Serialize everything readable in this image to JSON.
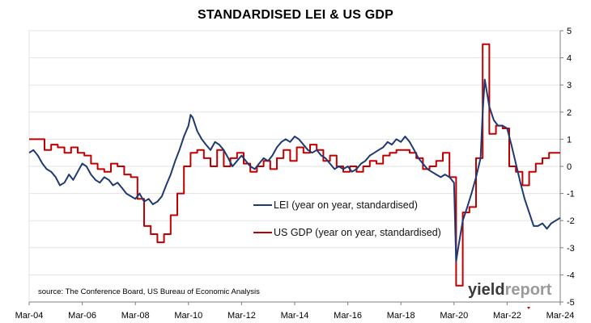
{
  "title": "STANDARDISED LEI & US GDP",
  "source_note": "source: The Conference Board, US Bureau of Economic Analysis",
  "brand": {
    "part1": "yield",
    "part2": "report"
  },
  "colors": {
    "lei": "#1f3a72",
    "gdp": "#c00000",
    "grid": "#e3e3e3",
    "axis": "#7f7f7f"
  },
  "chart_data": {
    "type": "line",
    "title": "STANDARDISED LEI & US GDP",
    "xlabel": "",
    "ylabel": "",
    "x_ticks": [
      "Mar-04",
      "Mar-06",
      "Mar-08",
      "Mar-10",
      "Mar-12",
      "Mar-14",
      "Mar-16",
      "Mar-18",
      "Mar-20",
      "Mar-22",
      "Mar-24"
    ],
    "xlim": [
      2004.17,
      2024.17
    ],
    "ylim": [
      -5,
      5
    ],
    "y_ticks": [
      -5,
      -4,
      -3,
      -2,
      -1,
      0,
      1,
      2,
      3,
      4,
      5
    ],
    "y_axis_side": "right",
    "grid": true,
    "legend_position": "center-right",
    "series": [
      {
        "name": "LEI (year on year, standardised)",
        "color": "#1f3a72",
        "points": [
          [
            2004.17,
            0.5
          ],
          [
            2004.33,
            0.6
          ],
          [
            2004.5,
            0.4
          ],
          [
            2004.67,
            0.1
          ],
          [
            2004.83,
            -0.1
          ],
          [
            2005.0,
            -0.2
          ],
          [
            2005.17,
            -0.4
          ],
          [
            2005.33,
            -0.7
          ],
          [
            2005.5,
            -0.6
          ],
          [
            2005.67,
            -0.3
          ],
          [
            2005.83,
            -0.5
          ],
          [
            2006.0,
            -0.2
          ],
          [
            2006.17,
            0.1
          ],
          [
            2006.33,
            0.0
          ],
          [
            2006.5,
            -0.3
          ],
          [
            2006.67,
            -0.5
          ],
          [
            2006.83,
            -0.6
          ],
          [
            2007.0,
            -0.4
          ],
          [
            2007.17,
            -0.5
          ],
          [
            2007.33,
            -0.7
          ],
          [
            2007.5,
            -0.6
          ],
          [
            2007.67,
            -0.8
          ],
          [
            2007.83,
            -1.0
          ],
          [
            2008.0,
            -1.1
          ],
          [
            2008.17,
            -1.2
          ],
          [
            2008.33,
            -1.0
          ],
          [
            2008.5,
            -1.3
          ],
          [
            2008.67,
            -1.2
          ],
          [
            2008.83,
            -1.4
          ],
          [
            2009.0,
            -1.3
          ],
          [
            2009.17,
            -1.1
          ],
          [
            2009.33,
            -0.7
          ],
          [
            2009.5,
            -0.3
          ],
          [
            2009.67,
            0.2
          ],
          [
            2009.83,
            0.6
          ],
          [
            2010.0,
            1.1
          ],
          [
            2010.17,
            1.5
          ],
          [
            2010.25,
            1.9
          ],
          [
            2010.33,
            1.8
          ],
          [
            2010.5,
            1.3
          ],
          [
            2010.67,
            1.0
          ],
          [
            2010.83,
            0.8
          ],
          [
            2011.0,
            0.6
          ],
          [
            2011.17,
            0.9
          ],
          [
            2011.33,
            0.8
          ],
          [
            2011.5,
            0.6
          ],
          [
            2011.67,
            0.3
          ],
          [
            2011.83,
            0.0
          ],
          [
            2012.0,
            0.2
          ],
          [
            2012.17,
            0.4
          ],
          [
            2012.33,
            0.2
          ],
          [
            2012.5,
            0.0
          ],
          [
            2012.67,
            -0.1
          ],
          [
            2012.83,
            0.1
          ],
          [
            2013.0,
            0.3
          ],
          [
            2013.17,
            0.2
          ],
          [
            2013.33,
            0.4
          ],
          [
            2013.5,
            0.7
          ],
          [
            2013.67,
            0.9
          ],
          [
            2013.83,
            1.0
          ],
          [
            2014.0,
            0.9
          ],
          [
            2014.17,
            1.1
          ],
          [
            2014.33,
            1.0
          ],
          [
            2014.5,
            0.8
          ],
          [
            2014.67,
            0.6
          ],
          [
            2014.83,
            0.5
          ],
          [
            2015.0,
            0.6
          ],
          [
            2015.17,
            0.4
          ],
          [
            2015.33,
            0.3
          ],
          [
            2015.5,
            0.1
          ],
          [
            2015.67,
            -0.1
          ],
          [
            2015.83,
            0.0
          ],
          [
            2016.0,
            -0.1
          ],
          [
            2016.17,
            0.0
          ],
          [
            2016.33,
            -0.2
          ],
          [
            2016.5,
            -0.1
          ],
          [
            2016.67,
            0.1
          ],
          [
            2016.83,
            0.2
          ],
          [
            2017.0,
            0.4
          ],
          [
            2017.17,
            0.5
          ],
          [
            2017.33,
            0.6
          ],
          [
            2017.5,
            0.7
          ],
          [
            2017.67,
            0.9
          ],
          [
            2017.83,
            0.8
          ],
          [
            2018.0,
            1.0
          ],
          [
            2018.17,
            0.9
          ],
          [
            2018.33,
            1.1
          ],
          [
            2018.5,
            0.9
          ],
          [
            2018.67,
            0.6
          ],
          [
            2018.83,
            0.3
          ],
          [
            2019.0,
            0.1
          ],
          [
            2019.17,
            -0.1
          ],
          [
            2019.33,
            -0.2
          ],
          [
            2019.5,
            -0.3
          ],
          [
            2019.67,
            -0.4
          ],
          [
            2019.83,
            -0.3
          ],
          [
            2020.0,
            -0.4
          ],
          [
            2020.17,
            -0.6
          ],
          [
            2020.25,
            -3.5
          ],
          [
            2020.33,
            -3.0
          ],
          [
            2020.5,
            -2.0
          ],
          [
            2020.67,
            -1.5
          ],
          [
            2020.83,
            -1.0
          ],
          [
            2021.0,
            -0.4
          ],
          [
            2021.17,
            0.3
          ],
          [
            2021.25,
            2.0
          ],
          [
            2021.33,
            3.2
          ],
          [
            2021.5,
            2.2
          ],
          [
            2021.67,
            1.7
          ],
          [
            2021.83,
            1.5
          ],
          [
            2022.0,
            1.5
          ],
          [
            2022.17,
            1.4
          ],
          [
            2022.33,
            0.8
          ],
          [
            2022.5,
            0.1
          ],
          [
            2022.67,
            -0.6
          ],
          [
            2022.83,
            -1.2
          ],
          [
            2023.0,
            -1.7
          ],
          [
            2023.17,
            -2.2
          ],
          [
            2023.33,
            -2.2
          ],
          [
            2023.5,
            -2.1
          ],
          [
            2023.67,
            -2.3
          ],
          [
            2023.83,
            -2.1
          ],
          [
            2024.0,
            -2.0
          ],
          [
            2024.17,
            -1.9
          ]
        ]
      },
      {
        "name": "US GDP (year on year, standardised)",
        "color": "#c00000",
        "points": [
          [
            2004.17,
            1.0
          ],
          [
            2004.75,
            1.0
          ],
          [
            2004.75,
            0.6
          ],
          [
            2005.0,
            0.6
          ],
          [
            2005.0,
            0.8
          ],
          [
            2005.25,
            0.8
          ],
          [
            2005.25,
            0.7
          ],
          [
            2005.5,
            0.7
          ],
          [
            2005.5,
            0.5
          ],
          [
            2005.75,
            0.5
          ],
          [
            2005.75,
            0.7
          ],
          [
            2006.0,
            0.7
          ],
          [
            2006.0,
            0.5
          ],
          [
            2006.25,
            0.5
          ],
          [
            2006.25,
            0.4
          ],
          [
            2006.5,
            0.4
          ],
          [
            2006.5,
            0.1
          ],
          [
            2006.75,
            0.1
          ],
          [
            2006.75,
            -0.1
          ],
          [
            2007.0,
            -0.1
          ],
          [
            2007.0,
            -0.2
          ],
          [
            2007.25,
            -0.2
          ],
          [
            2007.25,
            0.1
          ],
          [
            2007.5,
            0.1
          ],
          [
            2007.5,
            0.0
          ],
          [
            2007.75,
            0.0
          ],
          [
            2007.75,
            -0.3
          ],
          [
            2008.0,
            -0.3
          ],
          [
            2008.0,
            -0.4
          ],
          [
            2008.25,
            -0.4
          ],
          [
            2008.25,
            -1.2
          ],
          [
            2008.5,
            -1.2
          ],
          [
            2008.5,
            -2.2
          ],
          [
            2008.75,
            -2.2
          ],
          [
            2008.75,
            -2.5
          ],
          [
            2009.0,
            -2.5
          ],
          [
            2009.0,
            -2.8
          ],
          [
            2009.25,
            -2.8
          ],
          [
            2009.25,
            -2.5
          ],
          [
            2009.5,
            -2.5
          ],
          [
            2009.5,
            -1.8
          ],
          [
            2009.75,
            -1.8
          ],
          [
            2009.75,
            -1.0
          ],
          [
            2010.0,
            -1.0
          ],
          [
            2010.0,
            0.0
          ],
          [
            2010.25,
            0.0
          ],
          [
            2010.25,
            0.5
          ],
          [
            2010.5,
            0.5
          ],
          [
            2010.5,
            0.6
          ],
          [
            2010.75,
            0.6
          ],
          [
            2010.75,
            0.3
          ],
          [
            2011.0,
            0.3
          ],
          [
            2011.0,
            0.0
          ],
          [
            2011.25,
            0.0
          ],
          [
            2011.25,
            0.6
          ],
          [
            2011.5,
            0.6
          ],
          [
            2011.5,
            0.0
          ],
          [
            2011.75,
            0.0
          ],
          [
            2011.75,
            0.3
          ],
          [
            2012.0,
            0.3
          ],
          [
            2012.0,
            0.5
          ],
          [
            2012.25,
            0.5
          ],
          [
            2012.25,
            0.1
          ],
          [
            2012.5,
            0.1
          ],
          [
            2012.5,
            -0.2
          ],
          [
            2012.75,
            -0.2
          ],
          [
            2012.75,
            0.0
          ],
          [
            2013.0,
            0.0
          ],
          [
            2013.0,
            0.2
          ],
          [
            2013.25,
            0.2
          ],
          [
            2013.25,
            -0.1
          ],
          [
            2013.5,
            -0.1
          ],
          [
            2013.5,
            0.3
          ],
          [
            2013.75,
            0.3
          ],
          [
            2013.75,
            0.6
          ],
          [
            2014.0,
            0.6
          ],
          [
            2014.0,
            0.2
          ],
          [
            2014.25,
            0.2
          ],
          [
            2014.25,
            0.7
          ],
          [
            2014.5,
            0.7
          ],
          [
            2014.5,
            0.5
          ],
          [
            2014.75,
            0.5
          ],
          [
            2014.75,
            0.8
          ],
          [
            2015.0,
            0.8
          ],
          [
            2015.0,
            0.6
          ],
          [
            2015.25,
            0.6
          ],
          [
            2015.25,
            0.2
          ],
          [
            2015.5,
            0.2
          ],
          [
            2015.5,
            0.4
          ],
          [
            2015.75,
            0.4
          ],
          [
            2015.75,
            0.0
          ],
          [
            2016.0,
            0.0
          ],
          [
            2016.0,
            -0.2
          ],
          [
            2016.25,
            -0.2
          ],
          [
            2016.25,
            0.0
          ],
          [
            2016.5,
            0.0
          ],
          [
            2016.5,
            -0.2
          ],
          [
            2016.75,
            -0.2
          ],
          [
            2016.75,
            0.0
          ],
          [
            2017.0,
            0.0
          ],
          [
            2017.0,
            0.2
          ],
          [
            2017.25,
            0.2
          ],
          [
            2017.25,
            0.1
          ],
          [
            2017.5,
            0.1
          ],
          [
            2017.5,
            0.4
          ],
          [
            2017.75,
            0.4
          ],
          [
            2017.75,
            0.5
          ],
          [
            2018.0,
            0.5
          ],
          [
            2018.0,
            0.6
          ],
          [
            2018.5,
            0.6
          ],
          [
            2018.5,
            0.5
          ],
          [
            2018.75,
            0.5
          ],
          [
            2018.75,
            0.3
          ],
          [
            2019.0,
            0.3
          ],
          [
            2019.0,
            -0.1
          ],
          [
            2019.25,
            -0.1
          ],
          [
            2019.25,
            0.0
          ],
          [
            2019.5,
            0.0
          ],
          [
            2019.5,
            0.2
          ],
          [
            2019.75,
            0.2
          ],
          [
            2019.75,
            0.5
          ],
          [
            2020.0,
            0.5
          ],
          [
            2020.0,
            -0.4
          ],
          [
            2020.25,
            -0.4
          ],
          [
            2020.25,
            -4.4
          ],
          [
            2020.5,
            -4.4
          ],
          [
            2020.5,
            -1.7
          ],
          [
            2020.75,
            -1.7
          ],
          [
            2020.75,
            -1.5
          ],
          [
            2021.0,
            -1.5
          ],
          [
            2021.0,
            0.3
          ],
          [
            2021.25,
            0.3
          ],
          [
            2021.25,
            4.5
          ],
          [
            2021.5,
            4.5
          ],
          [
            2021.5,
            1.2
          ],
          [
            2021.75,
            1.2
          ],
          [
            2021.75,
            1.5
          ],
          [
            2022.0,
            1.5
          ],
          [
            2022.0,
            1.4
          ],
          [
            2022.25,
            1.4
          ],
          [
            2022.25,
            0.0
          ],
          [
            2022.5,
            0.0
          ],
          [
            2022.5,
            -0.2
          ],
          [
            2022.75,
            -0.2
          ],
          [
            2022.75,
            -0.7
          ],
          [
            2023.0,
            -0.7
          ],
          [
            2023.0,
            -0.2
          ],
          [
            2023.25,
            -0.2
          ],
          [
            2023.25,
            0.1
          ],
          [
            2023.5,
            0.1
          ],
          [
            2023.5,
            0.3
          ],
          [
            2023.75,
            0.3
          ],
          [
            2023.75,
            0.5
          ],
          [
            2024.17,
            0.5
          ]
        ]
      }
    ]
  }
}
